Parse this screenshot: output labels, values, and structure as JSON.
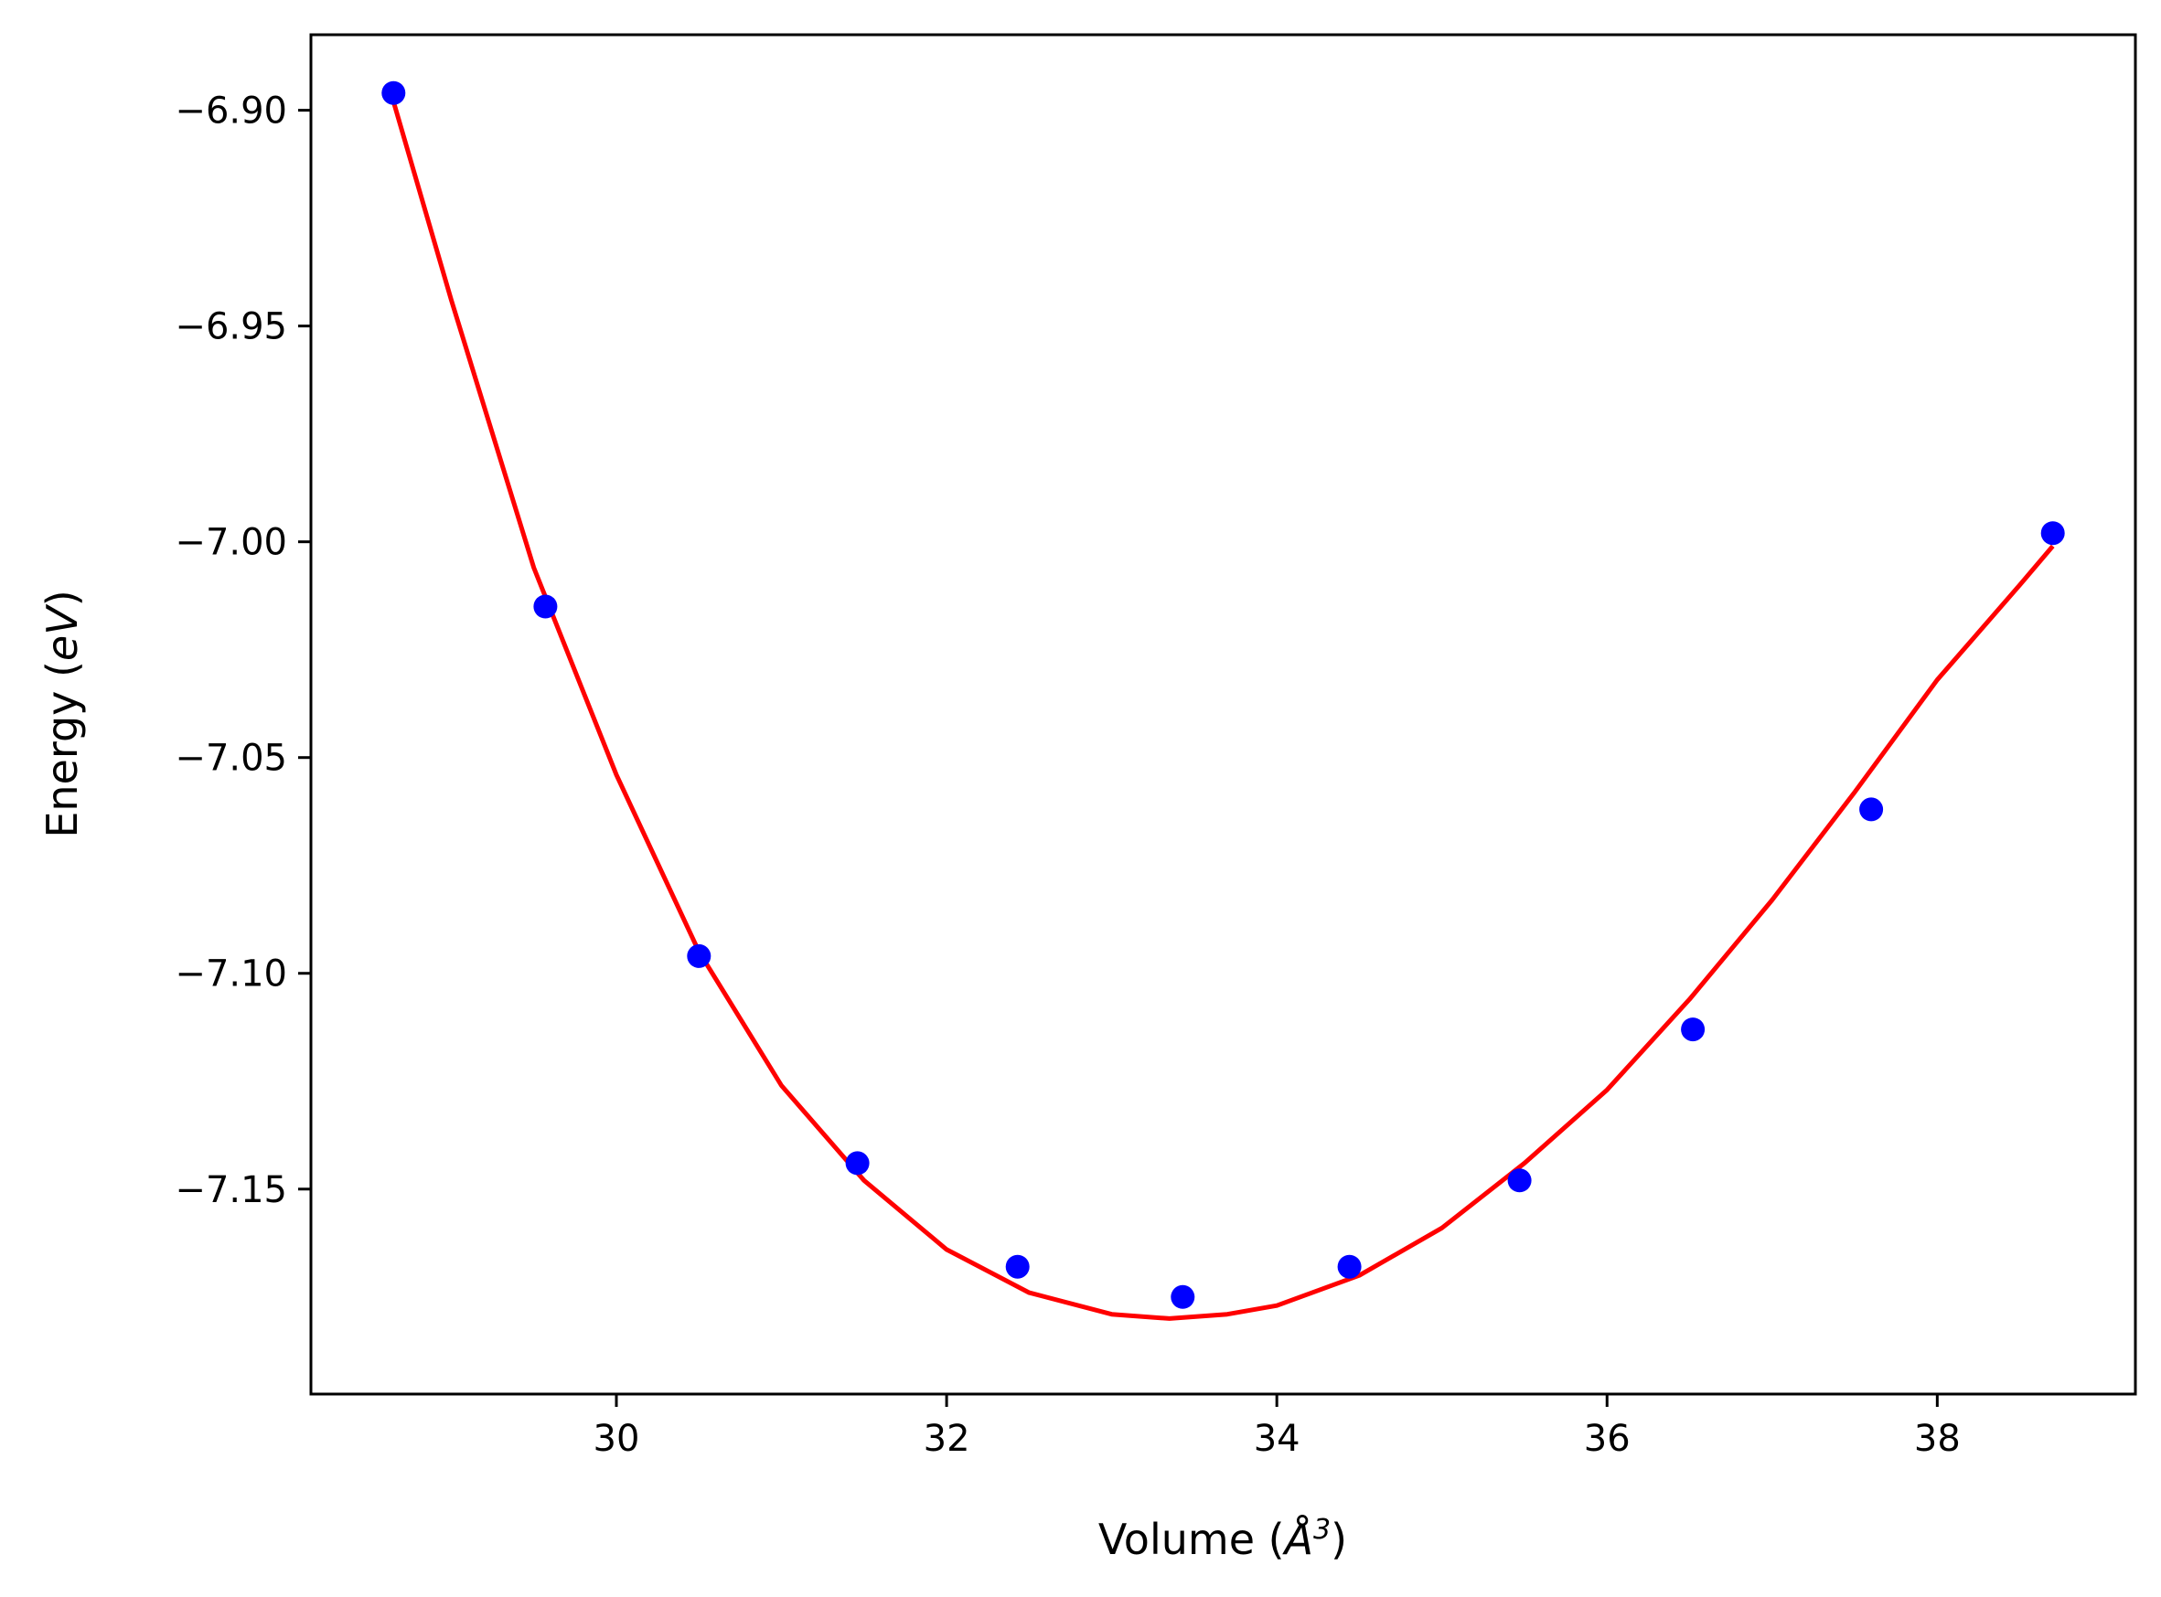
{
  "chart_data": {
    "type": "scatter",
    "title": "",
    "xlabel_prefix": "Volume (",
    "xlabel_var": "Å",
    "xlabel_exp": "3",
    "xlabel_suffix": ")",
    "ylabel_prefix": "Energy (",
    "ylabel_var": "eV",
    "ylabel_suffix": ")",
    "xlim": [
      28.15,
      39.2
    ],
    "ylim": [
      -7.1975,
      -6.8825
    ],
    "xticks": [
      30,
      32,
      34,
      36,
      38
    ],
    "yticks": [
      -6.9,
      -6.95,
      -7.0,
      -7.05,
      -7.1,
      -7.15
    ],
    "xtick_labels": [
      "30",
      "32",
      "34",
      "36",
      "38"
    ],
    "ytick_labels": [
      "−6.90",
      "−6.95",
      "−7.00",
      "−7.05",
      "−7.10",
      "−7.15"
    ],
    "grid": false,
    "series": [
      {
        "kind": "points",
        "color": "#0000ff",
        "x": [
          28.65,
          29.57,
          30.5,
          31.46,
          32.43,
          33.43,
          34.44,
          35.47,
          36.52,
          37.6,
          38.7
        ],
        "y": [
          -6.896,
          -7.015,
          -7.096,
          -7.144,
          -7.168,
          -7.175,
          -7.168,
          -7.148,
          -7.113,
          -7.062,
          -6.998
        ]
      },
      {
        "kind": "fit",
        "color": "#ff0000",
        "x": [
          28.65,
          29.0,
          29.5,
          30.0,
          30.5,
          31.0,
          31.5,
          32.0,
          32.5,
          33.0,
          33.35,
          33.7,
          34.0,
          34.5,
          35.0,
          35.5,
          36.0,
          36.5,
          37.0,
          37.5,
          38.0,
          38.5,
          38.7
        ],
        "y": [
          -6.898,
          -6.944,
          -7.006,
          -7.054,
          -7.095,
          -7.126,
          -7.148,
          -7.164,
          -7.174,
          -7.179,
          -7.18,
          -7.179,
          -7.177,
          -7.17,
          -7.159,
          -7.144,
          -7.127,
          -7.106,
          -7.083,
          -7.058,
          -7.032,
          -7.01,
          -7.001
        ]
      }
    ]
  }
}
